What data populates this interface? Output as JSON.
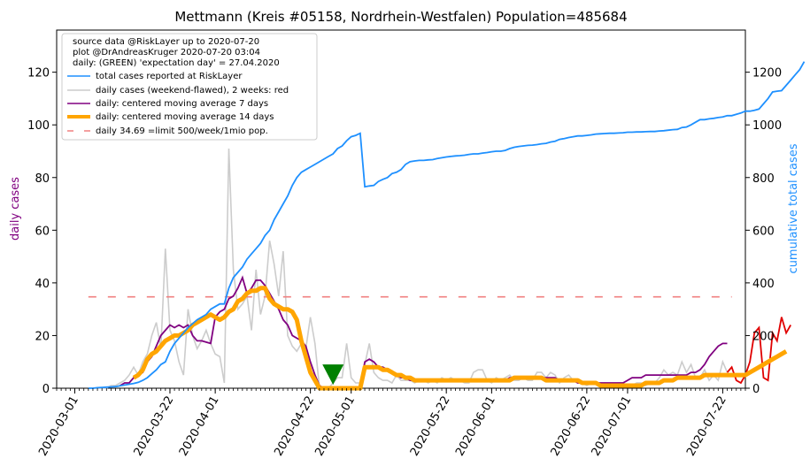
{
  "chart_data": {
    "type": "line",
    "title": "Mettmann (Kreis #05158, Nordrhein-Westfalen) Population=485684",
    "ylabel_left": "daily cases",
    "ylabel_right": "cumulative total cases",
    "ylim_left": [
      0,
      136
    ],
    "ylim_right": [
      0,
      1360
    ],
    "xlim": [
      "2020-02-26",
      "2020-07-27"
    ],
    "left_ticks": [
      0,
      20,
      40,
      60,
      80,
      100,
      120
    ],
    "right_ticks": [
      0,
      200,
      400,
      600,
      800,
      1000,
      1200
    ],
    "x_ticks": [
      "2020-03-01",
      "2020-03-22",
      "2020-04-01",
      "2020-04-22",
      "2020-05-01",
      "2020-05-22",
      "2020-06-01",
      "2020-06-22",
      "2020-07-01",
      "2020-07-22"
    ],
    "legend_header": [
      "source data @RiskLayer up to 2020-07-20",
      "plot @DrAndreasKruger 2020-07-20 03:04",
      "daily: (GREEN) 'expectation day' = 27.04.2020"
    ],
    "legend_position": "upper-left",
    "grid": false,
    "expectation_day": "2020-04-27",
    "limit_value": 34.69,
    "colors": {
      "total": "#1e90ff",
      "daily_raw": "#cccccc",
      "daily_recent": "#e00000",
      "ma7": "#800080",
      "ma14": "#ffa500",
      "limit": "#f08080",
      "marker": "#008000"
    },
    "series": [
      {
        "name": "total cases reported at RiskLayer",
        "axis": "right",
        "start": "2020-03-04",
        "values": [
          0,
          0,
          2,
          3,
          4,
          5,
          6,
          9,
          12,
          15,
          18,
          22,
          30,
          40,
          55,
          70,
          90,
          100,
          140,
          170,
          190,
          210,
          230,
          245,
          260,
          270,
          280,
          300,
          310,
          320,
          320,
          380,
          420,
          440,
          460,
          490,
          510,
          530,
          550,
          580,
          600,
          640,
          670,
          700,
          730,
          770,
          800,
          820,
          830,
          840,
          850,
          860,
          870,
          880,
          890,
          910,
          920,
          940,
          955,
          960,
          968,
          765,
          768,
          770,
          785,
          793,
          800,
          815,
          820,
          830,
          850,
          860,
          863,
          865,
          865,
          867,
          868,
          872,
          875,
          878,
          880,
          882,
          883,
          885,
          888,
          890,
          890,
          893,
          895,
          898,
          900,
          900,
          903,
          910,
          915,
          918,
          920,
          922,
          923,
          925,
          928,
          930,
          935,
          938,
          945,
          948,
          952,
          955,
          958,
          958,
          960,
          962,
          965,
          966,
          967,
          968,
          968,
          969,
          970,
          972,
          972,
          973,
          973,
          974,
          975,
          975,
          977,
          978,
          980,
          982,
          983,
          990,
          992,
          1000,
          1010,
          1020,
          1020,
          1023,
          1025,
          1028,
          1030,
          1035,
          1035,
          1040,
          1045,
          1052,
          1052,
          1055,
          1060,
          1080,
          1100,
          1125,
          1128,
          1130,
          1150,
          1170,
          1190,
          1210,
          1240
        ]
      },
      {
        "name": "daily cases (weekend-flawed), 2 weeks: red",
        "axis": "left",
        "start": "2020-03-04",
        "values": [
          0,
          0,
          0,
          0,
          0,
          1,
          1,
          2,
          3,
          5,
          8,
          5,
          10,
          13,
          20,
          25,
          15,
          53,
          22,
          18,
          10,
          5,
          30,
          20,
          15,
          18,
          22,
          17,
          13,
          12,
          2,
          91,
          45,
          30,
          32,
          35,
          22,
          45,
          28,
          35,
          56,
          47,
          35,
          52,
          20,
          16,
          14,
          17,
          15,
          27,
          17,
          0,
          0,
          0,
          2,
          4,
          4,
          17,
          4,
          2,
          2,
          9,
          17,
          6,
          4,
          3,
          3,
          2,
          5,
          3,
          3,
          3,
          2,
          3,
          3,
          2,
          3,
          2,
          4,
          3,
          4,
          3,
          3,
          2,
          2,
          6,
          7,
          7,
          3,
          2,
          4,
          3,
          4,
          5,
          3,
          3,
          4,
          3,
          3,
          6,
          6,
          4,
          6,
          5,
          2,
          4,
          5,
          3,
          2,
          2,
          1,
          2,
          2,
          1,
          2,
          1,
          1,
          2,
          2,
          1,
          1,
          2,
          2,
          1,
          2,
          2,
          4,
          7,
          5,
          6,
          5,
          10,
          6,
          9,
          4,
          4,
          7,
          3,
          5,
          3,
          10,
          6,
          8,
          3,
          2,
          5,
          10,
          21,
          23,
          4,
          3,
          21,
          18,
          27,
          21,
          24
        ]
      },
      {
        "name": "daily: centered moving average 7 days",
        "axis": "left",
        "start": "2020-03-11",
        "values": [
          1,
          2,
          2,
          4,
          5,
          6,
          10,
          12,
          16,
          20,
          22,
          24,
          23,
          24,
          23,
          24,
          20,
          18,
          18,
          17.5,
          17,
          27,
          29,
          30,
          34,
          35,
          38,
          42,
          36,
          38,
          41,
          41,
          39,
          36,
          33,
          30,
          26,
          24,
          20,
          19,
          18,
          16,
          10,
          5,
          1,
          0,
          0,
          0,
          0,
          0,
          0,
          0,
          0,
          0,
          10,
          11,
          10,
          8,
          8,
          7,
          6,
          5,
          4,
          4,
          3,
          3,
          3,
          3,
          3,
          3,
          3,
          3,
          3,
          3,
          3,
          3,
          3,
          3,
          3,
          3,
          3,
          3,
          3,
          3,
          3,
          3,
          4,
          4,
          4,
          4,
          4,
          4,
          4,
          4,
          4,
          4,
          4,
          3,
          3,
          3,
          3,
          2,
          2,
          2,
          2,
          2,
          2,
          2,
          2,
          2,
          2,
          2,
          3,
          4,
          4,
          4,
          5,
          5,
          5,
          5,
          5,
          5,
          5,
          5,
          5,
          5,
          6,
          6,
          7,
          9,
          12,
          14,
          16,
          17,
          17
        ]
      },
      {
        "name": "daily: centered moving average 14 days",
        "axis": "left",
        "start": "2020-03-14",
        "values": [
          4,
          5,
          7,
          11,
          13,
          14,
          16,
          18,
          19,
          20,
          20,
          21,
          22,
          24,
          25,
          26,
          27,
          28,
          27,
          26,
          27,
          29,
          30,
          33,
          34,
          36,
          37,
          37,
          38,
          38,
          34,
          32,
          31,
          30,
          30,
          29,
          26,
          18,
          12,
          6,
          3,
          0,
          0,
          0,
          0,
          0,
          0,
          0,
          0,
          0,
          0,
          8,
          8,
          8,
          8,
          7,
          7,
          6,
          5,
          5,
          4,
          4,
          3,
          3,
          3,
          3,
          3,
          3,
          3,
          3,
          3,
          3,
          3,
          3,
          3,
          3,
          3,
          3,
          3,
          3,
          3,
          3,
          3,
          3,
          4,
          4,
          4,
          4,
          4,
          4,
          4,
          3,
          3,
          3,
          3,
          3,
          3,
          3,
          3,
          2,
          2,
          2,
          2,
          1,
          1,
          1,
          1,
          1,
          1,
          1,
          1,
          1,
          1,
          2,
          2,
          2,
          2,
          3,
          3,
          3,
          4,
          4,
          4,
          4,
          4,
          4,
          5,
          5,
          5,
          5,
          5,
          5,
          5,
          5,
          5,
          5,
          6,
          7,
          8,
          9,
          10,
          11,
          12,
          13,
          14
        ]
      },
      {
        "name": "daily 34.69 =limit 500/week/1mio pop.",
        "axis": "left",
        "start": "2020-03-04",
        "end": "2020-07-24",
        "constant": 34.69
      }
    ]
  }
}
